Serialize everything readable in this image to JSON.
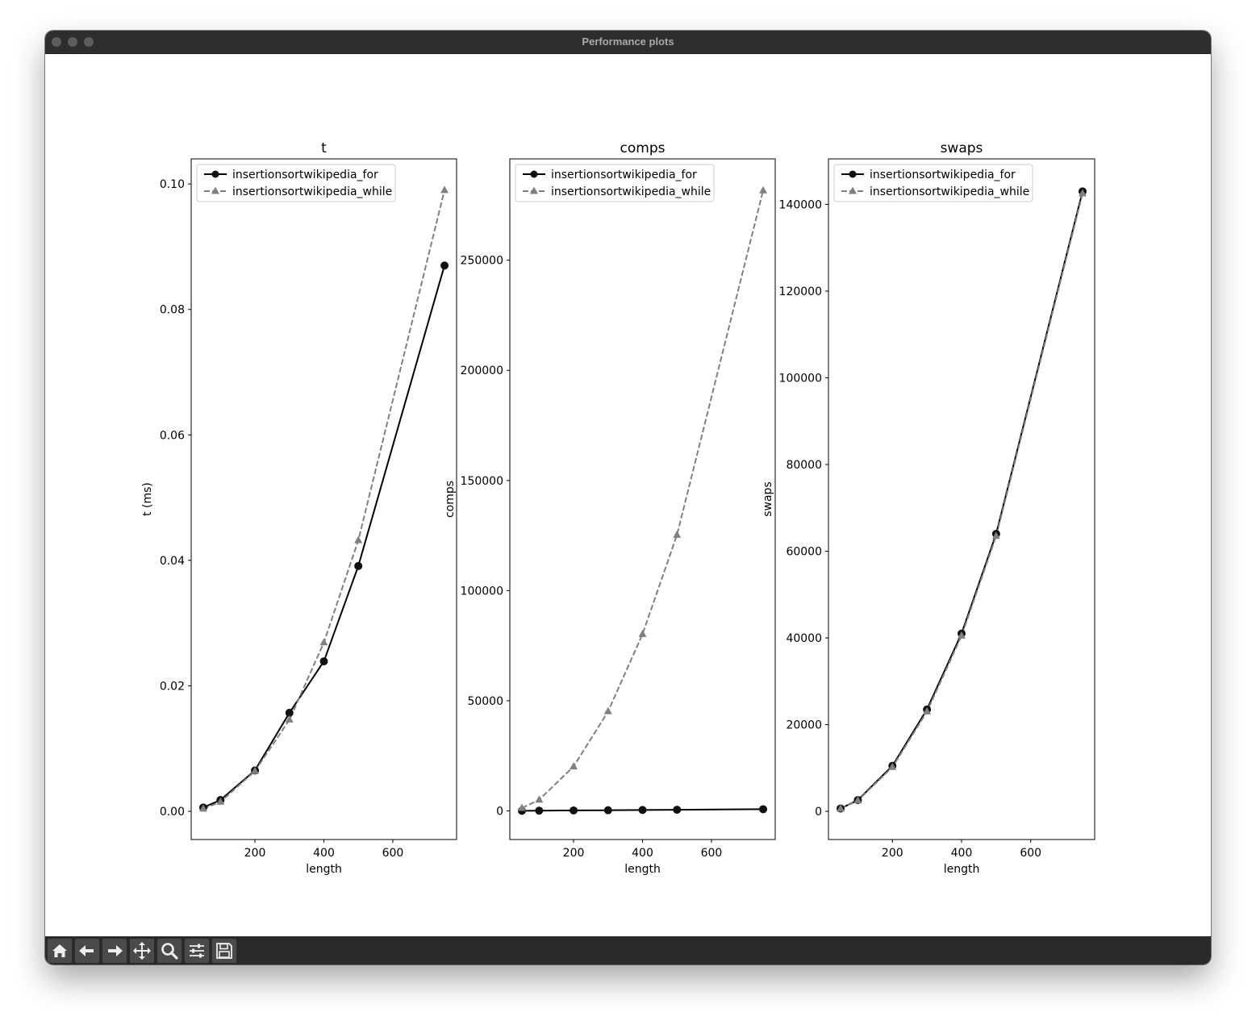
{
  "window": {
    "title": "Performance plots"
  },
  "toolbar": {
    "buttons": [
      {
        "name": "home-icon"
      },
      {
        "name": "back-arrow-icon"
      },
      {
        "name": "forward-arrow-icon"
      },
      {
        "name": "pan-move-icon"
      },
      {
        "name": "zoom-magnifier-icon"
      },
      {
        "name": "configure-subplots-icon"
      },
      {
        "name": "save-floppy-icon"
      }
    ]
  },
  "chart_data": [
    {
      "type": "line",
      "title": "t",
      "xlabel": "length",
      "ylabel": "t (ms)",
      "xlim": [
        15,
        785
      ],
      "ylim": [
        -0.0045,
        0.104
      ],
      "xticks": [
        200,
        400,
        600
      ],
      "xtick_labels": [
        "200",
        "400",
        "600"
      ],
      "yticks": [
        0,
        0.02,
        0.04,
        0.06,
        0.08,
        0.1
      ],
      "ytick_labels": [
        "0.00",
        "0.02",
        "0.04",
        "0.06",
        "0.08",
        "0.10"
      ],
      "legend": "top-left",
      "x": [
        50,
        100,
        200,
        300,
        400,
        500,
        750
      ],
      "series": [
        {
          "name": "insertionsortwikipedia_for",
          "color": "#000000",
          "marker": "circle",
          "linestyle": "solid",
          "values": [
            0.0006,
            0.0018,
            0.0065,
            0.0157,
            0.0239,
            0.0391,
            0.087
          ]
        },
        {
          "name": "insertionsortwikipedia_while",
          "color": "#808080",
          "marker": "triangle",
          "linestyle": "dashed",
          "values": [
            0.0004,
            0.0015,
            0.0064,
            0.0146,
            0.0269,
            0.0432,
            0.099
          ]
        }
      ]
    },
    {
      "type": "line",
      "title": "comps",
      "xlabel": "length",
      "ylabel": "comps",
      "xlim": [
        15,
        785
      ],
      "ylim": [
        -13000,
        296000
      ],
      "xticks": [
        200,
        400,
        600
      ],
      "xtick_labels": [
        "200",
        "400",
        "600"
      ],
      "yticks": [
        0,
        50000,
        100000,
        150000,
        200000,
        250000
      ],
      "ytick_labels": [
        "0",
        "50000",
        "100000",
        "150000",
        "200000",
        "250000"
      ],
      "legend": "top-left",
      "x": [
        50,
        100,
        200,
        300,
        400,
        500,
        750
      ],
      "series": [
        {
          "name": "insertionsortwikipedia_for",
          "color": "#000000",
          "marker": "circle",
          "linestyle": "solid",
          "values": [
            50,
            100,
            200,
            300,
            400,
            500,
            750
          ]
        },
        {
          "name": "insertionsortwikipedia_while",
          "color": "#808080",
          "marker": "triangle",
          "linestyle": "dashed",
          "values": [
            1275,
            5050,
            20100,
            45150,
            80200,
            125250,
            281625
          ]
        }
      ]
    },
    {
      "type": "line",
      "title": "swaps",
      "xlabel": "length",
      "ylabel": "swaps",
      "xlim": [
        15,
        785
      ],
      "ylim": [
        -6500,
        150500
      ],
      "xticks": [
        200,
        400,
        600
      ],
      "xtick_labels": [
        "200",
        "400",
        "600"
      ],
      "yticks": [
        0,
        20000,
        40000,
        60000,
        80000,
        100000,
        120000,
        140000
      ],
      "ytick_labels": [
        "0",
        "20000",
        "40000",
        "60000",
        "80000",
        "100000",
        "120000",
        "140000"
      ],
      "legend": "top-left",
      "x": [
        50,
        100,
        200,
        300,
        400,
        500,
        750
      ],
      "series": [
        {
          "name": "insertionsortwikipedia_for",
          "color": "#000000",
          "marker": "circle",
          "linestyle": "solid",
          "values": [
            650,
            2600,
            10500,
            23500,
            41000,
            64000,
            143000
          ]
        },
        {
          "name": "insertionsortwikipedia_while",
          "color": "#808080",
          "marker": "triangle",
          "linestyle": "dashed",
          "values": [
            600,
            2500,
            10200,
            23000,
            40500,
            63500,
            142500
          ]
        }
      ]
    }
  ]
}
